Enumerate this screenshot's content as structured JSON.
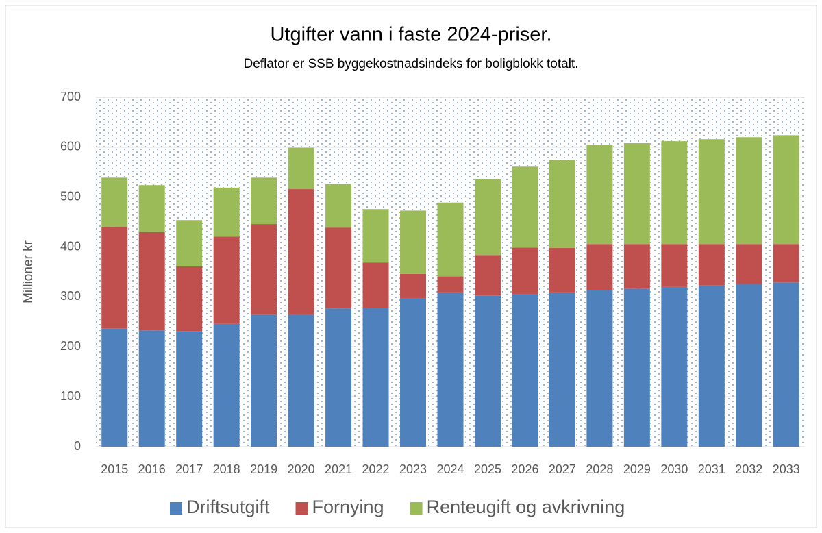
{
  "chart_data": {
    "type": "stacked-bar",
    "title": "Utgifter vann i faste 2024-priser.",
    "subtitle": "Deflator er SSB byggekostnadsindeks for boligblokk totalt.",
    "y_label": "Millioner kr",
    "categories": [
      "2015",
      "2016",
      "2017",
      "2018",
      "2019",
      "2020",
      "2021",
      "2022",
      "2023",
      "2024",
      "2025",
      "2026",
      "2027",
      "2028",
      "2029",
      "2030",
      "2031",
      "2032",
      "2033"
    ],
    "series": [
      {
        "name": "Driftsutgift",
        "color": "#4f81bd",
        "values": [
          237,
          233,
          231,
          246,
          264,
          265,
          277,
          278,
          297,
          309,
          303,
          306,
          309,
          313,
          316,
          320,
          323,
          326,
          329
        ]
      },
      {
        "name": "Fornying",
        "color": "#c0504d",
        "values": [
          204,
          197,
          130,
          175,
          182,
          251,
          162,
          91,
          49,
          32,
          81,
          93,
          89,
          93,
          90,
          86,
          83,
          80,
          77
        ]
      },
      {
        "name": "Renteugift og avkrivning",
        "color": "#9bbb59",
        "values": [
          98,
          94,
          93,
          98,
          93,
          83,
          87,
          107,
          127,
          148,
          152,
          162,
          176,
          199,
          202,
          206,
          210,
          214,
          218
        ]
      }
    ],
    "ylim": [
      0,
      700
    ],
    "yticks": [
      0,
      100,
      200,
      300,
      400,
      500,
      600,
      700
    ],
    "grid": true,
    "legend": "bottom"
  }
}
